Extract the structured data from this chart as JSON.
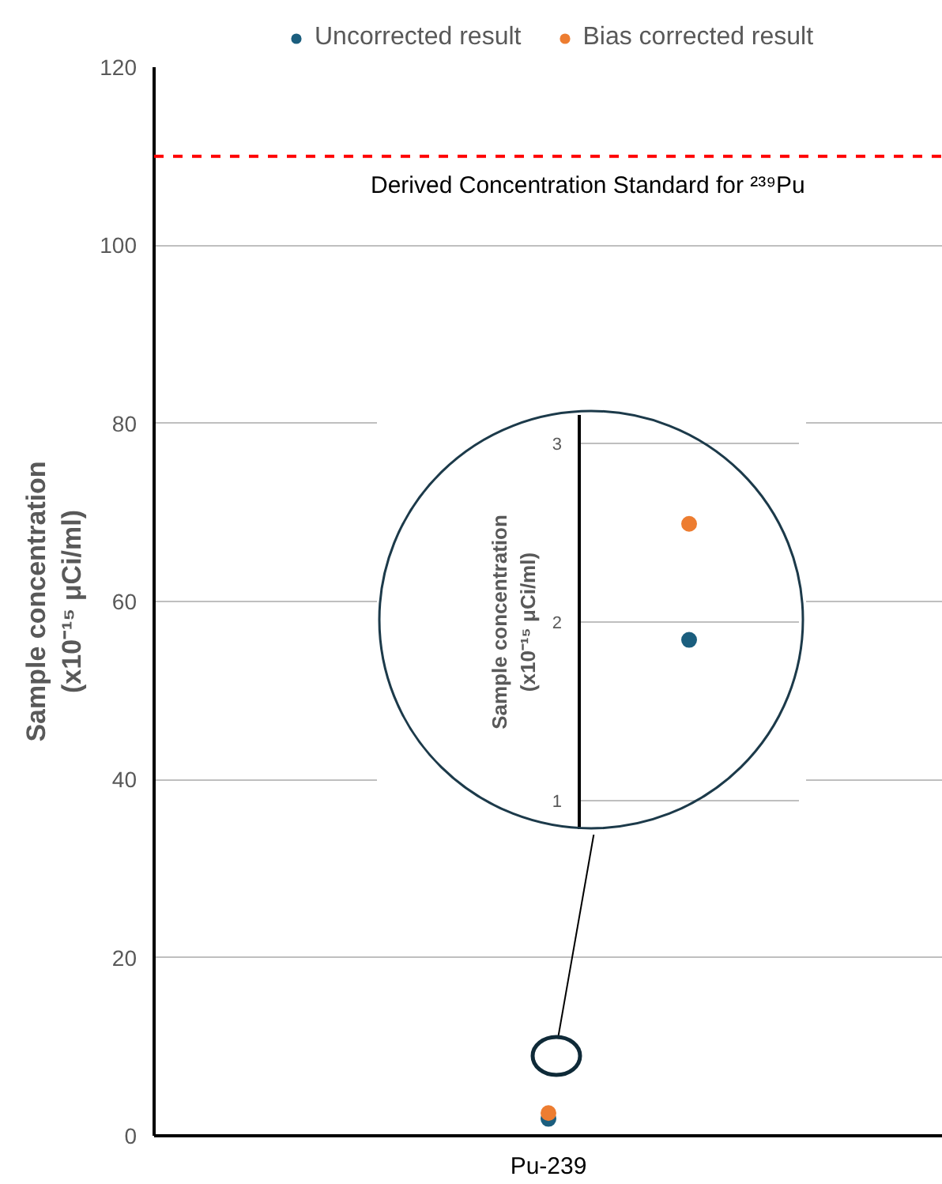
{
  "chart_data": [
    {
      "type": "scatter",
      "categories": [
        "Pu-239"
      ],
      "ylabel": "Sample concentration\n(x10⁻¹⁵ μCi/ml)",
      "ylim": [
        0,
        120
      ],
      "yticks": [
        0,
        20,
        40,
        60,
        80,
        100,
        120
      ],
      "grid": "y",
      "legend": "top",
      "marker": "circle",
      "series": [
        {
          "name": "Uncorrected result",
          "color": "#1b5e7e",
          "values": [
            1.9
          ]
        },
        {
          "name": "Bias corrected result",
          "color": "#ed7d31",
          "values": [
            2.55
          ]
        }
      ],
      "ref_lines": [
        {
          "axis": "y",
          "value": 110,
          "label": "Derived Concentration Standard for ²³⁹Pu",
          "color": "#ff0000",
          "line_style": "dashed"
        }
      ]
    },
    {
      "type": "scatter",
      "categories": [
        null
      ],
      "ylabel": "Sample concentration\n(x10⁻¹⁵ μCi/ml)",
      "ylim": [
        0.84,
        3.16
      ],
      "yticks": [
        1,
        2,
        3
      ],
      "grid": "y",
      "marker": "circle",
      "series": [
        {
          "color": "#1b5e7e",
          "values": [
            1.9
          ]
        },
        {
          "color": "#ed7d31",
          "values": [
            2.55
          ]
        }
      ]
    }
  ]
}
